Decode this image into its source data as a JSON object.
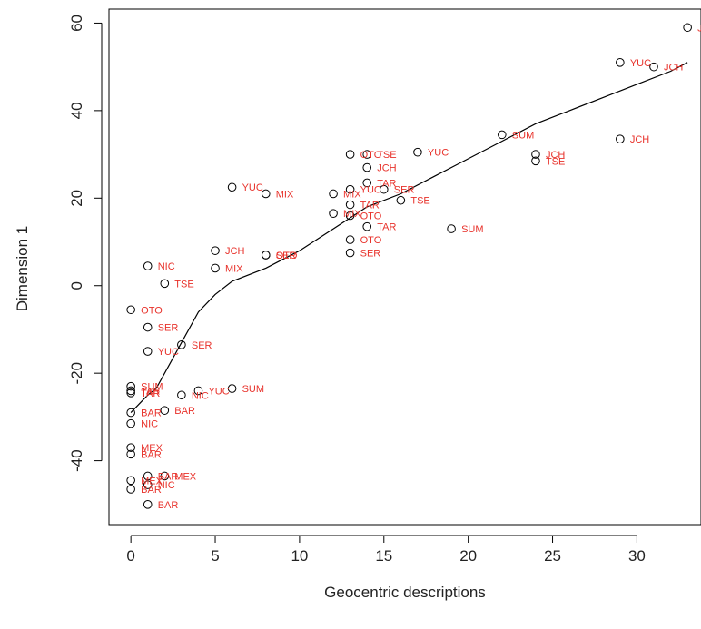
{
  "chart_data": {
    "type": "scatter",
    "title": "",
    "xlabel": "Geocentric descriptions",
    "ylabel": "Dimension 1",
    "xlim": [
      -1.3,
      33.8
    ],
    "ylim": [
      -54.6,
      63.2
    ],
    "xticks": [
      0,
      5,
      10,
      15,
      20,
      25,
      30
    ],
    "yticks": [
      -40,
      -20,
      0,
      20,
      40,
      60
    ],
    "grid": false,
    "legend": "none",
    "point_color": "#000000",
    "label_color": "#e8322b",
    "line_color": "#000000",
    "points": [
      {
        "x": 33,
        "y": 59,
        "label": "J"
      },
      {
        "x": 29,
        "y": 51,
        "label": "YUC"
      },
      {
        "x": 31,
        "y": 50,
        "label": "JCH"
      },
      {
        "x": 22,
        "y": 34.5,
        "label": "SUM"
      },
      {
        "x": 29,
        "y": 33.5,
        "label": "JCH"
      },
      {
        "x": 13,
        "y": 30,
        "label": "OTO"
      },
      {
        "x": 14,
        "y": 30,
        "label": "TSE"
      },
      {
        "x": 17,
        "y": 30.5,
        "label": "YUC"
      },
      {
        "x": 24,
        "y": 30,
        "label": "JCH"
      },
      {
        "x": 24,
        "y": 28.5,
        "label": "TSE"
      },
      {
        "x": 14,
        "y": 27,
        "label": "JCH"
      },
      {
        "x": 14,
        "y": 23.5,
        "label": "TAR"
      },
      {
        "x": 6,
        "y": 22.5,
        "label": "YUC"
      },
      {
        "x": 8,
        "y": 21,
        "label": "MIX"
      },
      {
        "x": 12,
        "y": 21,
        "label": "MIX"
      },
      {
        "x": 13,
        "y": 22,
        "label": "YUC"
      },
      {
        "x": 15,
        "y": 22,
        "label": "SER"
      },
      {
        "x": 16,
        "y": 19.5,
        "label": "TSE"
      },
      {
        "x": 13,
        "y": 18.5,
        "label": "TAR"
      },
      {
        "x": 12,
        "y": 16.5,
        "label": "MIX"
      },
      {
        "x": 13,
        "y": 16,
        "label": "OTO"
      },
      {
        "x": 14,
        "y": 13.5,
        "label": "TAR"
      },
      {
        "x": 19,
        "y": 13,
        "label": "SUM"
      },
      {
        "x": 13,
        "y": 10.5,
        "label": "OTO"
      },
      {
        "x": 5,
        "y": 8,
        "label": "JCH"
      },
      {
        "x": 8,
        "y": 7,
        "label": "SER"
      },
      {
        "x": 8,
        "y": 7,
        "label": "OTO"
      },
      {
        "x": 13,
        "y": 7.5,
        "label": "SER"
      },
      {
        "x": 1,
        "y": 4.5,
        "label": "NIC"
      },
      {
        "x": 5,
        "y": 4,
        "label": "MIX"
      },
      {
        "x": 2,
        "y": 0.5,
        "label": "TSE"
      },
      {
        "x": 0,
        "y": -5.5,
        "label": "OTO"
      },
      {
        "x": 1,
        "y": -9.5,
        "label": "SER"
      },
      {
        "x": 3,
        "y": -13.5,
        "label": "SER"
      },
      {
        "x": 1,
        "y": -15,
        "label": "YUC"
      },
      {
        "x": 0,
        "y": -23,
        "label": "SUM"
      },
      {
        "x": 0,
        "y": -24,
        "label": "TAR"
      },
      {
        "x": 0,
        "y": -24.5,
        "label": "TAR"
      },
      {
        "x": 4,
        "y": -24,
        "label": "YUC"
      },
      {
        "x": 6,
        "y": -23.5,
        "label": "SUM"
      },
      {
        "x": 3,
        "y": -25,
        "label": "NIC"
      },
      {
        "x": 0,
        "y": -29,
        "label": "BAR"
      },
      {
        "x": 2,
        "y": -28.5,
        "label": "BAR"
      },
      {
        "x": 0,
        "y": -31.5,
        "label": "NIC"
      },
      {
        "x": 0,
        "y": -37,
        "label": "MEX"
      },
      {
        "x": 0,
        "y": -38.5,
        "label": "BAR"
      },
      {
        "x": 1,
        "y": -43.5,
        "label": "BAR"
      },
      {
        "x": 2,
        "y": -43.5,
        "label": "MEX"
      },
      {
        "x": 0,
        "y": -44.5,
        "label": "MEX"
      },
      {
        "x": 1,
        "y": -45.5,
        "label": "NIC"
      },
      {
        "x": 0,
        "y": -46.5,
        "label": "BAR"
      },
      {
        "x": 1,
        "y": -50,
        "label": "BAR"
      }
    ],
    "fit_line": [
      {
        "x": 0,
        "y": -29
      },
      {
        "x": 0.5,
        "y": -27
      },
      {
        "x": 1,
        "y": -25
      },
      {
        "x": 1.5,
        "y": -23.5
      },
      {
        "x": 2,
        "y": -20
      },
      {
        "x": 3,
        "y": -13
      },
      {
        "x": 4,
        "y": -6
      },
      {
        "x": 5,
        "y": -2
      },
      {
        "x": 6,
        "y": 1
      },
      {
        "x": 8,
        "y": 4
      },
      {
        "x": 10,
        "y": 8
      },
      {
        "x": 12,
        "y": 13
      },
      {
        "x": 14,
        "y": 18
      },
      {
        "x": 16,
        "y": 21
      },
      {
        "x": 18,
        "y": 25
      },
      {
        "x": 20,
        "y": 29
      },
      {
        "x": 22,
        "y": 33
      },
      {
        "x": 24,
        "y": 37
      },
      {
        "x": 26,
        "y": 40
      },
      {
        "x": 28,
        "y": 43
      },
      {
        "x": 30,
        "y": 46
      },
      {
        "x": 32,
        "y": 49
      },
      {
        "x": 33,
        "y": 51
      }
    ]
  }
}
